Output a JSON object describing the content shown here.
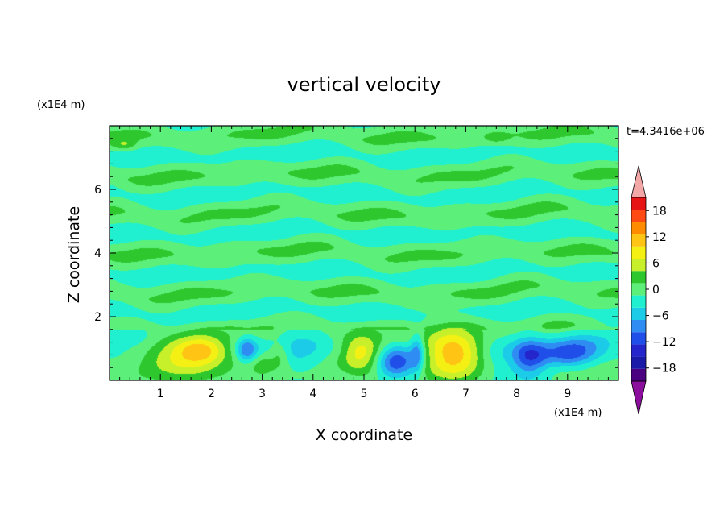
{
  "chart_data": {
    "type": "heatmap",
    "title": "vertical velocity",
    "xlabel": "X coordinate",
    "ylabel": "Z coordinate",
    "x_multiplier_label": "(x1E4 m)",
    "y_multiplier_label": "(x1E4 m)",
    "time_label": "t=4.3416e+06",
    "xlim": [
      0,
      10
    ],
    "ylim": [
      0,
      8
    ],
    "x_ticks": [
      1,
      2,
      3,
      4,
      5,
      6,
      7,
      8,
      9
    ],
    "y_ticks": [
      2,
      4,
      6
    ],
    "colorbar": {
      "levels": [
        -21,
        -18,
        -15,
        -12,
        -9,
        -6,
        -3,
        0,
        3,
        6,
        9,
        12,
        15,
        18,
        21
      ],
      "colors": [
        "#4b0082",
        "#1a1aa8",
        "#2525cc",
        "#1f4fe8",
        "#2f8cf2",
        "#1ccbe8",
        "#20f0d0",
        "#5cf07a",
        "#2ec82e",
        "#c8f02a",
        "#f4f014",
        "#ffc414",
        "#ff8c00",
        "#ff4a14",
        "#e61414"
      ],
      "under_color": "#8b0e9c",
      "over_color": "#f3a7a7",
      "tick_labels": [
        "18",
        "12",
        "6",
        "0",
        "−6",
        "−12",
        "−18"
      ],
      "tick_values": [
        18,
        12,
        6,
        0,
        -6,
        -12,
        -18
      ]
    },
    "features": [
      {
        "x": 1.5,
        "z": 0.8,
        "peak": 10,
        "sx": 0.55,
        "sz": 0.45
      },
      {
        "x": 1.85,
        "z": 0.95,
        "peak": 6,
        "sx": 0.3,
        "sz": 0.3
      },
      {
        "x": 2.7,
        "z": 0.95,
        "peak": -10,
        "sx": 0.15,
        "sz": 0.28
      },
      {
        "x": 3.0,
        "z": 0.5,
        "peak": 4,
        "sx": 0.2,
        "sz": 0.3
      },
      {
        "x": 3.35,
        "z": 0.8,
        "peak": 5,
        "sx": 0.14,
        "sz": 0.3
      },
      {
        "x": 3.7,
        "z": 0.9,
        "peak": -4,
        "sx": 0.45,
        "sz": 0.55
      },
      {
        "x": 4.95,
        "z": 0.85,
        "peak": 10,
        "sx": 0.28,
        "sz": 0.4
      },
      {
        "x": 5.65,
        "z": 0.55,
        "peak": -12,
        "sx": 0.28,
        "sz": 0.35
      },
      {
        "x": 6.05,
        "z": 0.9,
        "peak": -8,
        "sx": 0.1,
        "sz": 0.45
      },
      {
        "x": 6.75,
        "z": 0.85,
        "peak": 14,
        "sx": 0.42,
        "sz": 0.52
      },
      {
        "x": 7.6,
        "z": 0.7,
        "peak": -4,
        "sx": 0.3,
        "sz": 0.45
      },
      {
        "x": 8.25,
        "z": 0.75,
        "peak": -12,
        "sx": 0.25,
        "sz": 0.42
      },
      {
        "x": 9.05,
        "z": 0.85,
        "peak": -11,
        "sx": 0.38,
        "sz": 0.3
      },
      {
        "x": 0.3,
        "z": 1.4,
        "peak": -3.5,
        "sx": 0.8,
        "sz": 0.25
      },
      {
        "x": 9.6,
        "z": 1.3,
        "peak": -3.5,
        "sx": 0.45,
        "sz": 0.25
      },
      {
        "x": 0.3,
        "z": 7.4,
        "peak": 4,
        "sx": 0.15,
        "sz": 0.12
      },
      {
        "x": 7.6,
        "z": 7.6,
        "peak": 3.5,
        "sx": 0.18,
        "sz": 0.12
      }
    ]
  }
}
